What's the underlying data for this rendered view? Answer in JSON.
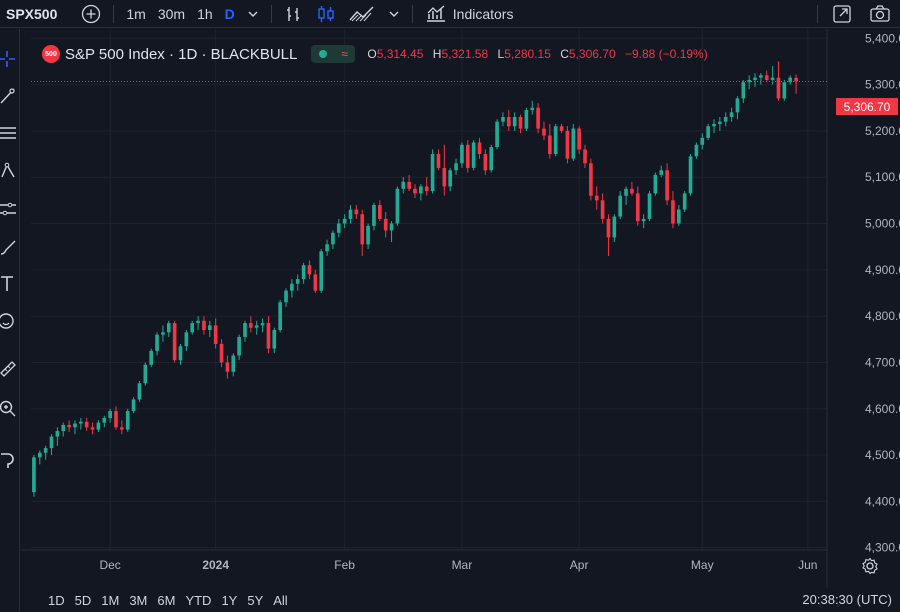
{
  "toolbar": {
    "symbol": "SPX500",
    "intervals": [
      "1m",
      "30m",
      "1h",
      "D"
    ],
    "active_interval": "D",
    "indicators_label": "Indicators"
  },
  "legend": {
    "logo_text": "500",
    "title": "S&P 500 Index · 1D · BLACKBULL",
    "open_label": "O",
    "open": "5,314.45",
    "high_label": "H",
    "high": "5,321.58",
    "low_label": "L",
    "low": "5,280.15",
    "close_label": "C",
    "close": "5,306.70",
    "change": "−9.88 (−0.19%)"
  },
  "last_price_label": "5,306.70",
  "range_buttons": [
    "1D",
    "5D",
    "1M",
    "3M",
    "6M",
    "YTD",
    "1Y",
    "5Y",
    "All"
  ],
  "clock": "20:38:30 (UTC)",
  "colors": {
    "up": "#22ab94",
    "down": "#f23645",
    "bg": "#131722",
    "grid": "#1e222d",
    "accent": "#2962ff"
  },
  "icons": [
    "plus-circle-icon",
    "chevron-down-icon",
    "bar-chart-icon",
    "candles-icon",
    "area-chart-icon",
    "indicators-icon",
    "fullscreen-icon",
    "camera-icon",
    "crosshair-icon",
    "trend-line-icon",
    "fib-icon",
    "pattern-icon",
    "prediction-icon",
    "brush-icon",
    "text-icon",
    "emoji-icon",
    "ruler-icon",
    "zoom-icon",
    "magnet-icon",
    "gear-icon"
  ],
  "chart_data": {
    "type": "candlestick",
    "symbol": "S&P 500 Index",
    "timeframe": "1D",
    "x_tick_labels": [
      "Dec",
      "2024",
      "Feb",
      "Mar",
      "Apr",
      "May",
      "Jun"
    ],
    "y_tick_labels": [
      "5,400.00",
      "5,300.00",
      "5,200.00",
      "5,100.00",
      "5,000.00",
      "4,900.00",
      "4,800.00",
      "4,700.00",
      "4,600.00",
      "4,500.00",
      "4,400.00",
      "4,300.00"
    ],
    "y_ticks": [
      5400,
      5300,
      5200,
      5100,
      5000,
      4900,
      4800,
      4700,
      4600,
      4500,
      4400,
      4300
    ],
    "ylim": [
      4295,
      5420
    ],
    "x_tick_index": [
      13,
      31,
      53,
      73,
      93,
      114,
      132
    ],
    "last_price": 5306.7,
    "candles": [
      [
        4420,
        4500,
        4410,
        4495
      ],
      [
        4495,
        4510,
        4480,
        4505
      ],
      [
        4505,
        4520,
        4490,
        4515
      ],
      [
        4515,
        4545,
        4500,
        4540
      ],
      [
        4540,
        4560,
        4520,
        4552
      ],
      [
        4552,
        4570,
        4540,
        4565
      ],
      [
        4565,
        4575,
        4550,
        4560
      ],
      [
        4560,
        4575,
        4545,
        4568
      ],
      [
        4568,
        4580,
        4555,
        4572
      ],
      [
        4572,
        4580,
        4552,
        4560
      ],
      [
        4560,
        4570,
        4545,
        4555
      ],
      [
        4555,
        4575,
        4550,
        4570
      ],
      [
        4570,
        4585,
        4560,
        4580
      ],
      [
        4580,
        4600,
        4570,
        4595
      ],
      [
        4595,
        4605,
        4555,
        4560
      ],
      [
        4560,
        4575,
        4545,
        4555
      ],
      [
        4555,
        4600,
        4550,
        4595
      ],
      [
        4595,
        4625,
        4590,
        4620
      ],
      [
        4620,
        4660,
        4615,
        4655
      ],
      [
        4655,
        4700,
        4650,
        4695
      ],
      [
        4695,
        4730,
        4690,
        4725
      ],
      [
        4725,
        4765,
        4715,
        4760
      ],
      [
        4760,
        4780,
        4745,
        4765
      ],
      [
        4765,
        4790,
        4755,
        4785
      ],
      [
        4785,
        4790,
        4700,
        4705
      ],
      [
        4705,
        4740,
        4695,
        4735
      ],
      [
        4735,
        4770,
        4725,
        4765
      ],
      [
        4765,
        4790,
        4760,
        4785
      ],
      [
        4785,
        4800,
        4770,
        4790
      ],
      [
        4790,
        4800,
        4760,
        4770
      ],
      [
        4770,
        4790,
        4755,
        4780
      ],
      [
        4780,
        4795,
        4730,
        4740
      ],
      [
        4740,
        4750,
        4690,
        4700
      ],
      [
        4700,
        4715,
        4665,
        4680
      ],
      [
        4680,
        4720,
        4670,
        4715
      ],
      [
        4715,
        4760,
        4705,
        4755
      ],
      [
        4755,
        4790,
        4745,
        4785
      ],
      [
        4785,
        4800,
        4765,
        4775
      ],
      [
        4775,
        4790,
        4760,
        4780
      ],
      [
        4780,
        4795,
        4765,
        4785
      ],
      [
        4785,
        4800,
        4720,
        4730
      ],
      [
        4730,
        4775,
        4720,
        4770
      ],
      [
        4770,
        4835,
        4765,
        4830
      ],
      [
        4830,
        4860,
        4820,
        4855
      ],
      [
        4855,
        4880,
        4840,
        4870
      ],
      [
        4870,
        4890,
        4855,
        4880
      ],
      [
        4880,
        4915,
        4870,
        4910
      ],
      [
        4910,
        4920,
        4880,
        4890
      ],
      [
        4890,
        4900,
        4850,
        4855
      ],
      [
        4855,
        4945,
        4850,
        4940
      ],
      [
        4940,
        4965,
        4930,
        4955
      ],
      [
        4955,
        4985,
        4945,
        4980
      ],
      [
        4980,
        5010,
        4970,
        5000
      ],
      [
        5000,
        5020,
        4990,
        5010
      ],
      [
        5010,
        5040,
        5000,
        5030
      ],
      [
        5030,
        5040,
        5010,
        5020
      ],
      [
        5020,
        5030,
        4930,
        4955
      ],
      [
        4955,
        5000,
        4945,
        4995
      ],
      [
        4995,
        5045,
        4985,
        5040
      ],
      [
        5040,
        5050,
        5005,
        5010
      ],
      [
        5010,
        5025,
        4970,
        4985
      ],
      [
        4985,
        5005,
        4960,
        5000
      ],
      [
        5000,
        5080,
        4995,
        5075
      ],
      [
        5075,
        5100,
        5065,
        5090
      ],
      [
        5090,
        5105,
        5070,
        5075
      ],
      [
        5075,
        5085,
        5055,
        5065
      ],
      [
        5065,
        5085,
        5050,
        5080
      ],
      [
        5080,
        5100,
        5060,
        5070
      ],
      [
        5070,
        5160,
        5065,
        5150
      ],
      [
        5150,
        5160,
        5115,
        5120
      ],
      [
        5120,
        5170,
        5060,
        5080
      ],
      [
        5080,
        5120,
        5070,
        5115
      ],
      [
        5115,
        5140,
        5105,
        5130
      ],
      [
        5130,
        5175,
        5120,
        5170
      ],
      [
        5170,
        5180,
        5110,
        5120
      ],
      [
        5120,
        5180,
        5115,
        5175
      ],
      [
        5175,
        5185,
        5140,
        5150
      ],
      [
        5150,
        5160,
        5105,
        5115
      ],
      [
        5115,
        5170,
        5110,
        5165
      ],
      [
        5165,
        5225,
        5160,
        5220
      ],
      [
        5220,
        5240,
        5210,
        5230
      ],
      [
        5230,
        5245,
        5200,
        5210
      ],
      [
        5210,
        5240,
        5200,
        5230
      ],
      [
        5230,
        5235,
        5195,
        5205
      ],
      [
        5205,
        5250,
        5200,
        5245
      ],
      [
        5245,
        5265,
        5235,
        5250
      ],
      [
        5250,
        5260,
        5195,
        5205
      ],
      [
        5205,
        5220,
        5180,
        5190
      ],
      [
        5190,
        5215,
        5140,
        5150
      ],
      [
        5150,
        5215,
        5145,
        5210
      ],
      [
        5210,
        5215,
        5195,
        5200
      ],
      [
        5200,
        5210,
        5130,
        5140
      ],
      [
        5140,
        5215,
        5135,
        5205
      ],
      [
        5205,
        5210,
        5150,
        5160
      ],
      [
        5160,
        5170,
        5120,
        5130
      ],
      [
        5130,
        5140,
        5050,
        5060
      ],
      [
        5060,
        5080,
        5030,
        5050
      ],
      [
        5050,
        5065,
        5000,
        5010
      ],
      [
        5010,
        5020,
        4930,
        4970
      ],
      [
        4970,
        5020,
        4960,
        5015
      ],
      [
        5015,
        5070,
        5010,
        5060
      ],
      [
        5060,
        5080,
        5040,
        5075
      ],
      [
        5075,
        5090,
        5060,
        5065
      ],
      [
        5065,
        5080,
        4995,
        5005
      ],
      [
        5005,
        5020,
        4990,
        5010
      ],
      [
        5010,
        5070,
        5005,
        5065
      ],
      [
        5065,
        5110,
        5060,
        5105
      ],
      [
        5105,
        5125,
        5100,
        5115
      ],
      [
        5115,
        5130,
        5040,
        5050
      ],
      [
        5050,
        5070,
        4990,
        5000
      ],
      [
        5000,
        5040,
        4995,
        5030
      ],
      [
        5030,
        5070,
        5025,
        5065
      ],
      [
        5065,
        5150,
        5060,
        5145
      ],
      [
        5145,
        5175,
        5140,
        5170
      ],
      [
        5170,
        5195,
        5160,
        5185
      ],
      [
        5185,
        5215,
        5180,
        5210
      ],
      [
        5210,
        5225,
        5195,
        5215
      ],
      [
        5215,
        5230,
        5200,
        5220
      ],
      [
        5220,
        5240,
        5210,
        5230
      ],
      [
        5230,
        5250,
        5220,
        5240
      ],
      [
        5240,
        5275,
        5225,
        5270
      ],
      [
        5270,
        5310,
        5260,
        5305
      ],
      [
        5305,
        5320,
        5290,
        5310
      ],
      [
        5310,
        5325,
        5295,
        5315
      ],
      [
        5315,
        5325,
        5300,
        5320
      ],
      [
        5320,
        5330,
        5305,
        5310
      ],
      [
        5310,
        5340,
        5300,
        5315
      ],
      [
        5315,
        5350,
        5265,
        5270
      ],
      [
        5270,
        5310,
        5265,
        5305
      ],
      [
        5305,
        5320,
        5300,
        5315
      ],
      [
        5314.45,
        5321.58,
        5280.15,
        5306.7
      ]
    ]
  }
}
